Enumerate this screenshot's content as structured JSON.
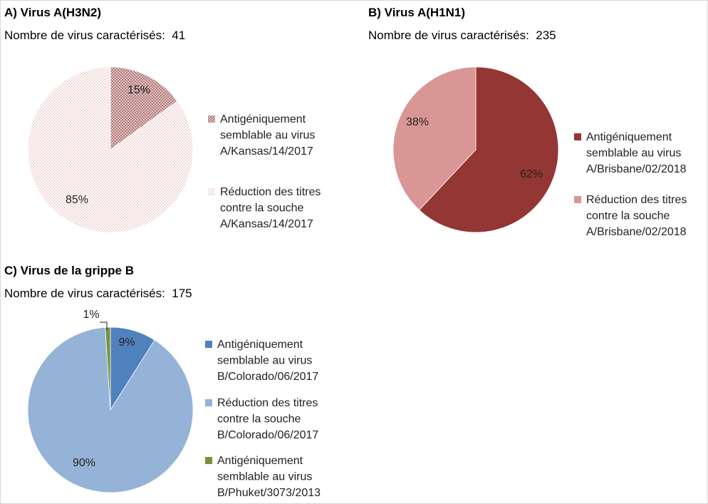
{
  "charts": [
    {
      "title": "A) Virus A(H3N2)",
      "count_label": "Nombre de virus caractérisés:",
      "count_value": "41",
      "chart_data": {
        "type": "pie",
        "slices": [
          {
            "value": 15,
            "label": "15%",
            "legend": [
              "Antigéniquement",
              "semblable au virus",
              "A/Kansas/14/2017"
            ],
            "color": "#b07878",
            "pattern": "crosshatch"
          },
          {
            "value": 85,
            "label": "85%",
            "legend": [
              "Réduction des titres",
              "contre la souche",
              "A/Kansas/14/2017"
            ],
            "color": "#e8b8b8",
            "pattern": "dots"
          }
        ]
      }
    },
    {
      "title": "B) Virus A(H1N1)",
      "count_label": "Nombre de virus caractérisés:",
      "count_value": "235",
      "chart_data": {
        "type": "pie",
        "slices": [
          {
            "value": 62,
            "label": "62%",
            "legend": [
              "Antigéniquement",
              "semblable au virus",
              "A/Brisbane/02/2018"
            ],
            "color": "#943634"
          },
          {
            "value": 38,
            "label": "38%",
            "legend": [
              "Réduction des titres",
              "contre la souche",
              "A/Brisbane/02/2018"
            ],
            "color": "#d99694"
          }
        ]
      }
    },
    {
      "title": "C) Virus de la grippe B",
      "count_label": "Nombre de virus caractérisés:",
      "count_value": "175",
      "chart_data": {
        "type": "pie",
        "slices": [
          {
            "value": 9,
            "label": "9%",
            "legend": [
              "Antigéniquement",
              "semblable au virus",
              "B/Colorado/06/2017"
            ],
            "color": "#4f81bd"
          },
          {
            "value": 90,
            "label": "90%",
            "legend": [
              "Réduction des titres",
              "contre la souche",
              "B/Colorado/06/2017"
            ],
            "color": "#95b3d7"
          },
          {
            "value": 1,
            "label": "1%",
            "legend": [
              "Antigéniquement",
              "semblable au virus",
              "B/Phuket/3073/2013"
            ],
            "color": "#77933c"
          }
        ]
      }
    }
  ]
}
